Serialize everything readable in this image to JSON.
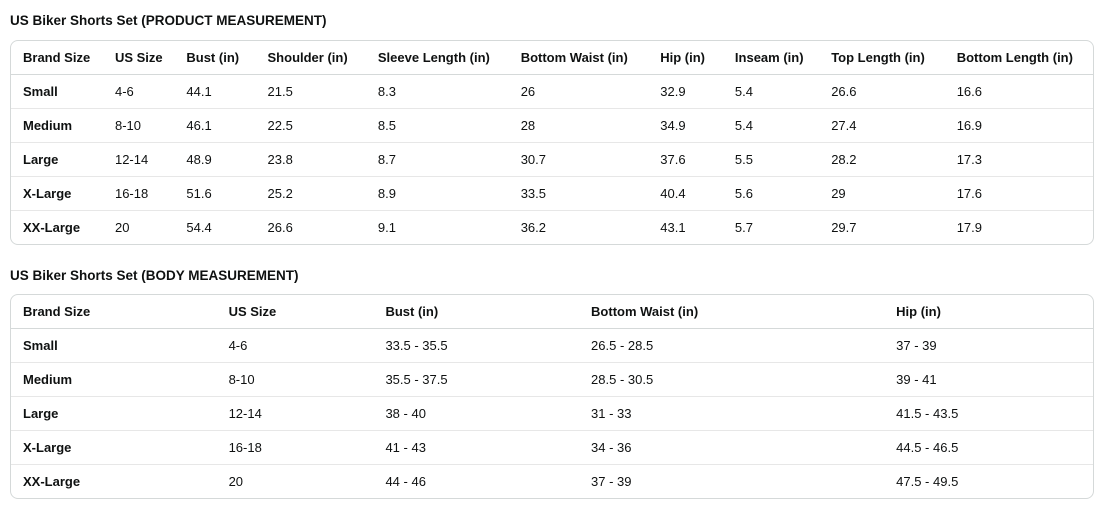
{
  "tables": [
    {
      "title": "US Biker Shorts Set (PRODUCT MEASUREMENT)",
      "columns": [
        "Brand Size",
        "US Size",
        "Bust (in)",
        "Shoulder (in)",
        "Sleeve Length (in)",
        "Bottom Waist (in)",
        "Hip (in)",
        "Inseam (in)",
        "Top Length (in)",
        "Bottom Length (in)"
      ],
      "rows": [
        [
          "Small",
          "4-6",
          "44.1",
          "21.5",
          "8.3",
          "26",
          "32.9",
          "5.4",
          "26.6",
          "16.6"
        ],
        [
          "Medium",
          "8-10",
          "46.1",
          "22.5",
          "8.5",
          "28",
          "34.9",
          "5.4",
          "27.4",
          "16.9"
        ],
        [
          "Large",
          "12-14",
          "48.9",
          "23.8",
          "8.7",
          "30.7",
          "37.6",
          "5.5",
          "28.2",
          "17.3"
        ],
        [
          "X-Large",
          "16-18",
          "51.6",
          "25.2",
          "8.9",
          "33.5",
          "40.4",
          "5.6",
          "29",
          "17.6"
        ],
        [
          "XX-Large",
          "20",
          "54.4",
          "26.6",
          "9.1",
          "36.2",
          "43.1",
          "5.7",
          "29.7",
          "17.9"
        ]
      ]
    },
    {
      "title": "US Biker Shorts Set (BODY MEASUREMENT)",
      "columns": [
        "Brand Size",
        "US Size",
        "Bust (in)",
        "Bottom Waist (in)",
        "Hip (in)"
      ],
      "rows": [
        [
          "Small",
          "4-6",
          "33.5 - 35.5",
          "26.5 - 28.5",
          "37 - 39"
        ],
        [
          "Medium",
          "8-10",
          "35.5 - 37.5",
          "28.5 - 30.5",
          "39 - 41"
        ],
        [
          "Large",
          "12-14",
          "38 - 40",
          "31 - 33",
          "41.5 - 43.5"
        ],
        [
          "X-Large",
          "16-18",
          "41 - 43",
          "34 - 36",
          "44.5 - 46.5"
        ],
        [
          "XX-Large",
          "20",
          "44 - 46",
          "37 - 39",
          "47.5 - 49.5"
        ]
      ]
    }
  ],
  "colors": {
    "text": "#0f1111",
    "table_border": "#d5d9d9",
    "row_divider": "#e7e7e7",
    "background": "#ffffff"
  }
}
